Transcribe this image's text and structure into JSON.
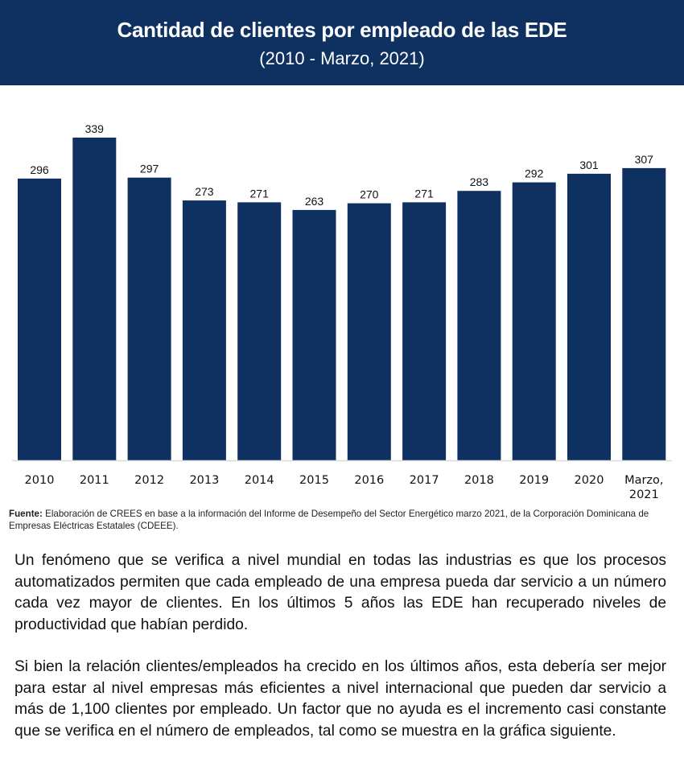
{
  "header": {
    "title": "Cantidad de clientes por empleado de las EDE",
    "subtitle": "(2010 - Marzo, 2021)"
  },
  "colors": {
    "header_bg": "#0e3161",
    "bar": "#0e3161",
    "baseline": "#d9d9d9"
  },
  "chart_data": {
    "type": "bar",
    "title": "Cantidad de clientes por empleado de las EDE",
    "subtitle": "(2010 - Marzo, 2021)",
    "xlabel": "",
    "ylabel": "",
    "categories": [
      "2010",
      "2011",
      "2012",
      "2013",
      "2014",
      "2015",
      "2016",
      "2017",
      "2018",
      "2019",
      "2020",
      "Marzo, 2021"
    ],
    "category_lines": [
      [
        "2010"
      ],
      [
        "2011"
      ],
      [
        "2012"
      ],
      [
        "2013"
      ],
      [
        "2014"
      ],
      [
        "2015"
      ],
      [
        "2016"
      ],
      [
        "2017"
      ],
      [
        "2018"
      ],
      [
        "2019"
      ],
      [
        "2020"
      ],
      [
        "Marzo,",
        "2021"
      ]
    ],
    "values": [
      296,
      339,
      297,
      273,
      271,
      263,
      270,
      271,
      283,
      292,
      301,
      307
    ],
    "ylim": [
      0,
      339
    ],
    "grid": false,
    "data_labels": true,
    "legend": "none"
  },
  "source": {
    "label": "Fuente:",
    "text": " Elaboración de CREES en base a la información del Informe de Desempeño del Sector Energético marzo 2021, de la Corporación Dominicana de Empresas Eléctricas Estatales (CDEEE)."
  },
  "body": {
    "paragraphs": [
      "Un fenómeno que se verifica a nivel mundial en todas las industrias es que los procesos automatizados permiten que cada empleado de una empresa pueda dar servicio a un número cada vez mayor de clientes. En los últimos 5 años las EDE han recuperado niveles de productividad que habían perdido.",
      "Si bien la relación clientes/empleados ha crecido en los últimos años, esta debería ser mejor para estar al nivel empresas más eficientes a nivel internacional que pueden dar servicio a más de 1,100 clientes por empleado. Un factor que no ayuda es el incremento casi constante que se verifica en el número de empleados, tal como se muestra en la gráfica siguiente."
    ]
  }
}
